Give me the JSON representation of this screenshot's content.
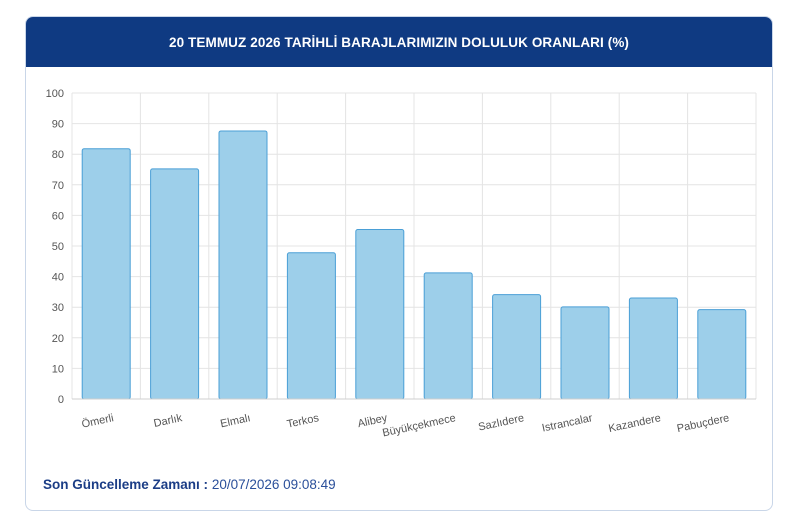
{
  "header": {
    "title": "20 TEMMUZ 2026 TARİHLİ BARAJLARIMIZIN DOLULUK ORANLARI (%)"
  },
  "footer": {
    "label": "Son Güncelleme Zamanı :",
    "value": "20/07/2026 09:08:49"
  },
  "colors": {
    "header_bg": "#0f3a82",
    "bar_fill": "#9dcfea",
    "bar_stroke": "#4a9fd6",
    "grid": "#e4e4e4"
  },
  "chart_data": {
    "type": "bar",
    "title": "20 TEMMUZ 2026 TARİHLİ BARAJLARIMIZIN DOLULUK ORANLARI (%)",
    "categories": [
      "Ömerli",
      "Darlık",
      "Elmalı",
      "Terkos",
      "Alibey",
      "Büyükçekmece",
      "Sazlıdere",
      "Istrancalar",
      "Kazandere",
      "Pabuçdere"
    ],
    "values": [
      81.8,
      75.2,
      87.6,
      47.8,
      55.4,
      41.2,
      34.1,
      30.1,
      33.0,
      29.2
    ],
    "yticks": [
      0,
      10,
      20,
      30,
      40,
      50,
      60,
      70,
      80,
      90,
      100
    ],
    "ylim": [
      0,
      100
    ],
    "grid": true,
    "legend": "none"
  }
}
